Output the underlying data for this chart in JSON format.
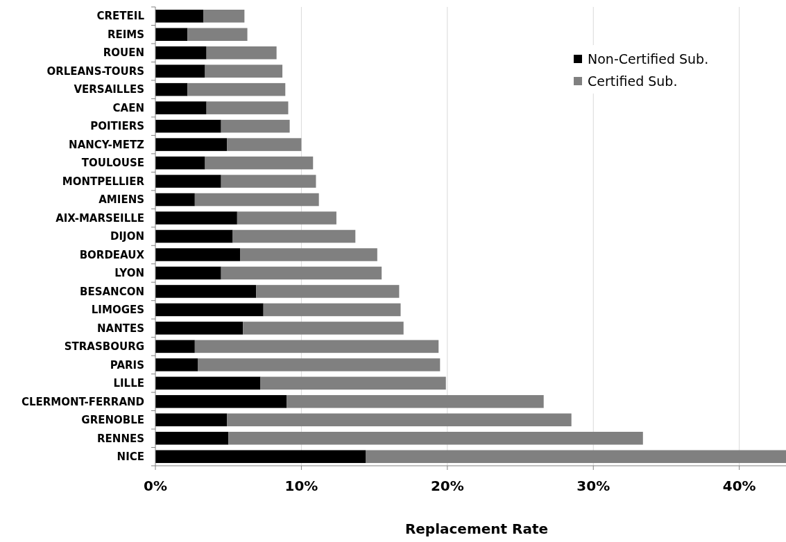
{
  "chart_data": {
    "type": "bar",
    "orientation": "horizontal",
    "stacked": true,
    "categories": [
      "CRETEIL",
      "REIMS",
      "ROUEN",
      "ORLEANS-TOURS",
      "VERSAILLES",
      "CAEN",
      "POITIERS",
      "NANCY-METZ",
      "TOULOUSE",
      "MONTPELLIER",
      "AMIENS",
      "AIX-MARSEILLE",
      "DIJON",
      "BORDEAUX",
      "LYON",
      "BESANCON",
      "LIMOGES",
      "NANTES",
      "STRASBOURG",
      "PARIS",
      "LILLE",
      "CLERMONT-FERRAND",
      "GRENOBLE",
      "RENNES",
      "NICE"
    ],
    "series": [
      {
        "name": "Non-Certified Sub.",
        "color": "#000000",
        "values": [
          3.3,
          2.2,
          3.5,
          3.4,
          2.2,
          3.5,
          4.5,
          4.9,
          3.4,
          4.5,
          2.7,
          5.6,
          5.3,
          5.8,
          4.5,
          6.9,
          7.4,
          6.0,
          2.7,
          2.9,
          7.2,
          9.0,
          4.9,
          5.0,
          14.4
        ]
      },
      {
        "name": "Certified Sub.",
        "color": "#808080",
        "values": [
          2.8,
          4.1,
          4.8,
          5.3,
          6.7,
          5.6,
          4.7,
          5.1,
          7.4,
          6.5,
          8.5,
          6.8,
          8.4,
          9.4,
          11.0,
          9.8,
          9.4,
          11.0,
          16.7,
          16.6,
          12.7,
          17.6,
          23.6,
          28.4,
          28.8
        ]
      }
    ],
    "xlim": [
      0,
      43.2
    ],
    "xticks": [
      {
        "value": 0,
        "label": "0%"
      },
      {
        "value": 10,
        "label": "10%"
      },
      {
        "value": 20,
        "label": "20%"
      },
      {
        "value": 30,
        "label": "30%"
      },
      {
        "value": 40,
        "label": "40%"
      }
    ],
    "xlabel": "Replacement Rate",
    "grid": "x",
    "legend": "top right"
  }
}
